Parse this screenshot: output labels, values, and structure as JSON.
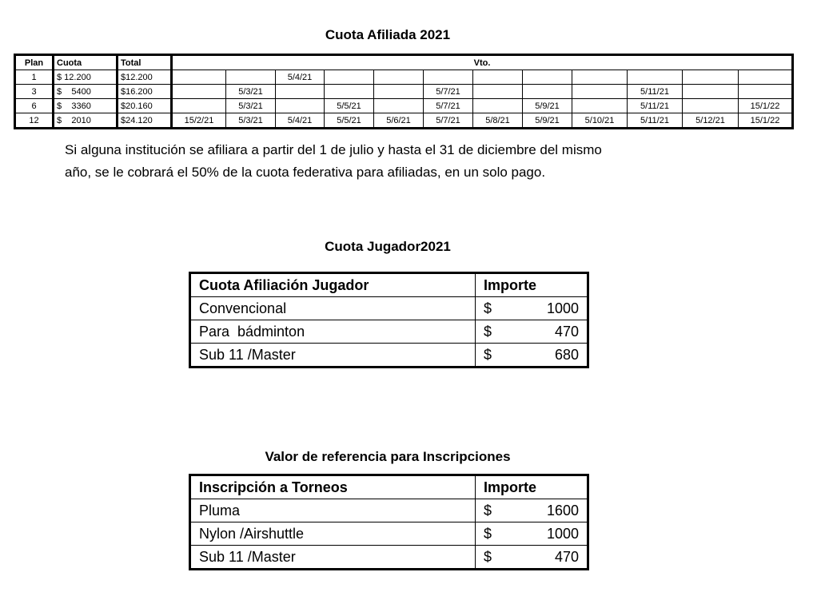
{
  "afiliada": {
    "title": "Cuota Afiliada 2021",
    "headers": {
      "plan": "Plan",
      "cuota": "Cuota",
      "total": "Total",
      "vto": "Vto."
    },
    "rows": [
      {
        "plan": "1",
        "cuota": "$ 12.200",
        "total": "$12.200",
        "vto": [
          "",
          "",
          "5/4/21",
          "",
          "",
          "",
          "",
          "",
          "",
          "",
          "",
          ""
        ]
      },
      {
        "plan": "3",
        "cuota": "$    5400",
        "total": "$16.200",
        "vto": [
          "",
          "5/3/21",
          "",
          "",
          "",
          "5/7/21",
          "",
          "",
          "",
          "5/11/21",
          "",
          ""
        ]
      },
      {
        "plan": "6",
        "cuota": "$    3360",
        "total": "$20.160",
        "vto": [
          "",
          "5/3/21",
          "",
          "5/5/21",
          "",
          "5/7/21",
          "",
          "5/9/21",
          "",
          "5/11/21",
          "",
          "15/1/22"
        ]
      },
      {
        "plan": "12",
        "cuota": "$    2010",
        "total": "$24.120",
        "vto": [
          "15/2/21",
          "5/3/21",
          "5/4/21",
          "5/5/21",
          "5/6/21",
          "5/7/21",
          "5/8/21",
          "5/9/21",
          "5/10/21",
          "5/11/21",
          "5/12/21",
          "15/1/22"
        ]
      }
    ],
    "note_line1": "Si alguna institución se afiliara a partir del 1 de julio y hasta el 31 de diciembre del mismo",
    "note_line2": "año, se le cobrará el 50% de la cuota federativa para afiliadas, en un solo pago."
  },
  "jugador": {
    "title": "Cuota Jugador2021",
    "headers": [
      "Cuota Afiliación Jugador",
      "Importe"
    ],
    "rows": [
      {
        "label": "Convencional",
        "currency": "$",
        "amount": "1000"
      },
      {
        "label": "Para  bádminton",
        "currency": "$",
        "amount": "470"
      },
      {
        "label": "Sub 11 /Master",
        "currency": "$",
        "amount": "680"
      }
    ]
  },
  "inscripciones": {
    "title": "Valor de referencia para Inscripciones",
    "headers": [
      "Inscripción a Torneos",
      "Importe"
    ],
    "rows": [
      {
        "label": "Pluma",
        "currency": "$",
        "amount": "1600"
      },
      {
        "label": "Nylon /Airshuttle",
        "currency": "$",
        "amount": "1000"
      },
      {
        "label": "Sub 11 /Master",
        "currency": "$",
        "amount": "470"
      }
    ]
  }
}
